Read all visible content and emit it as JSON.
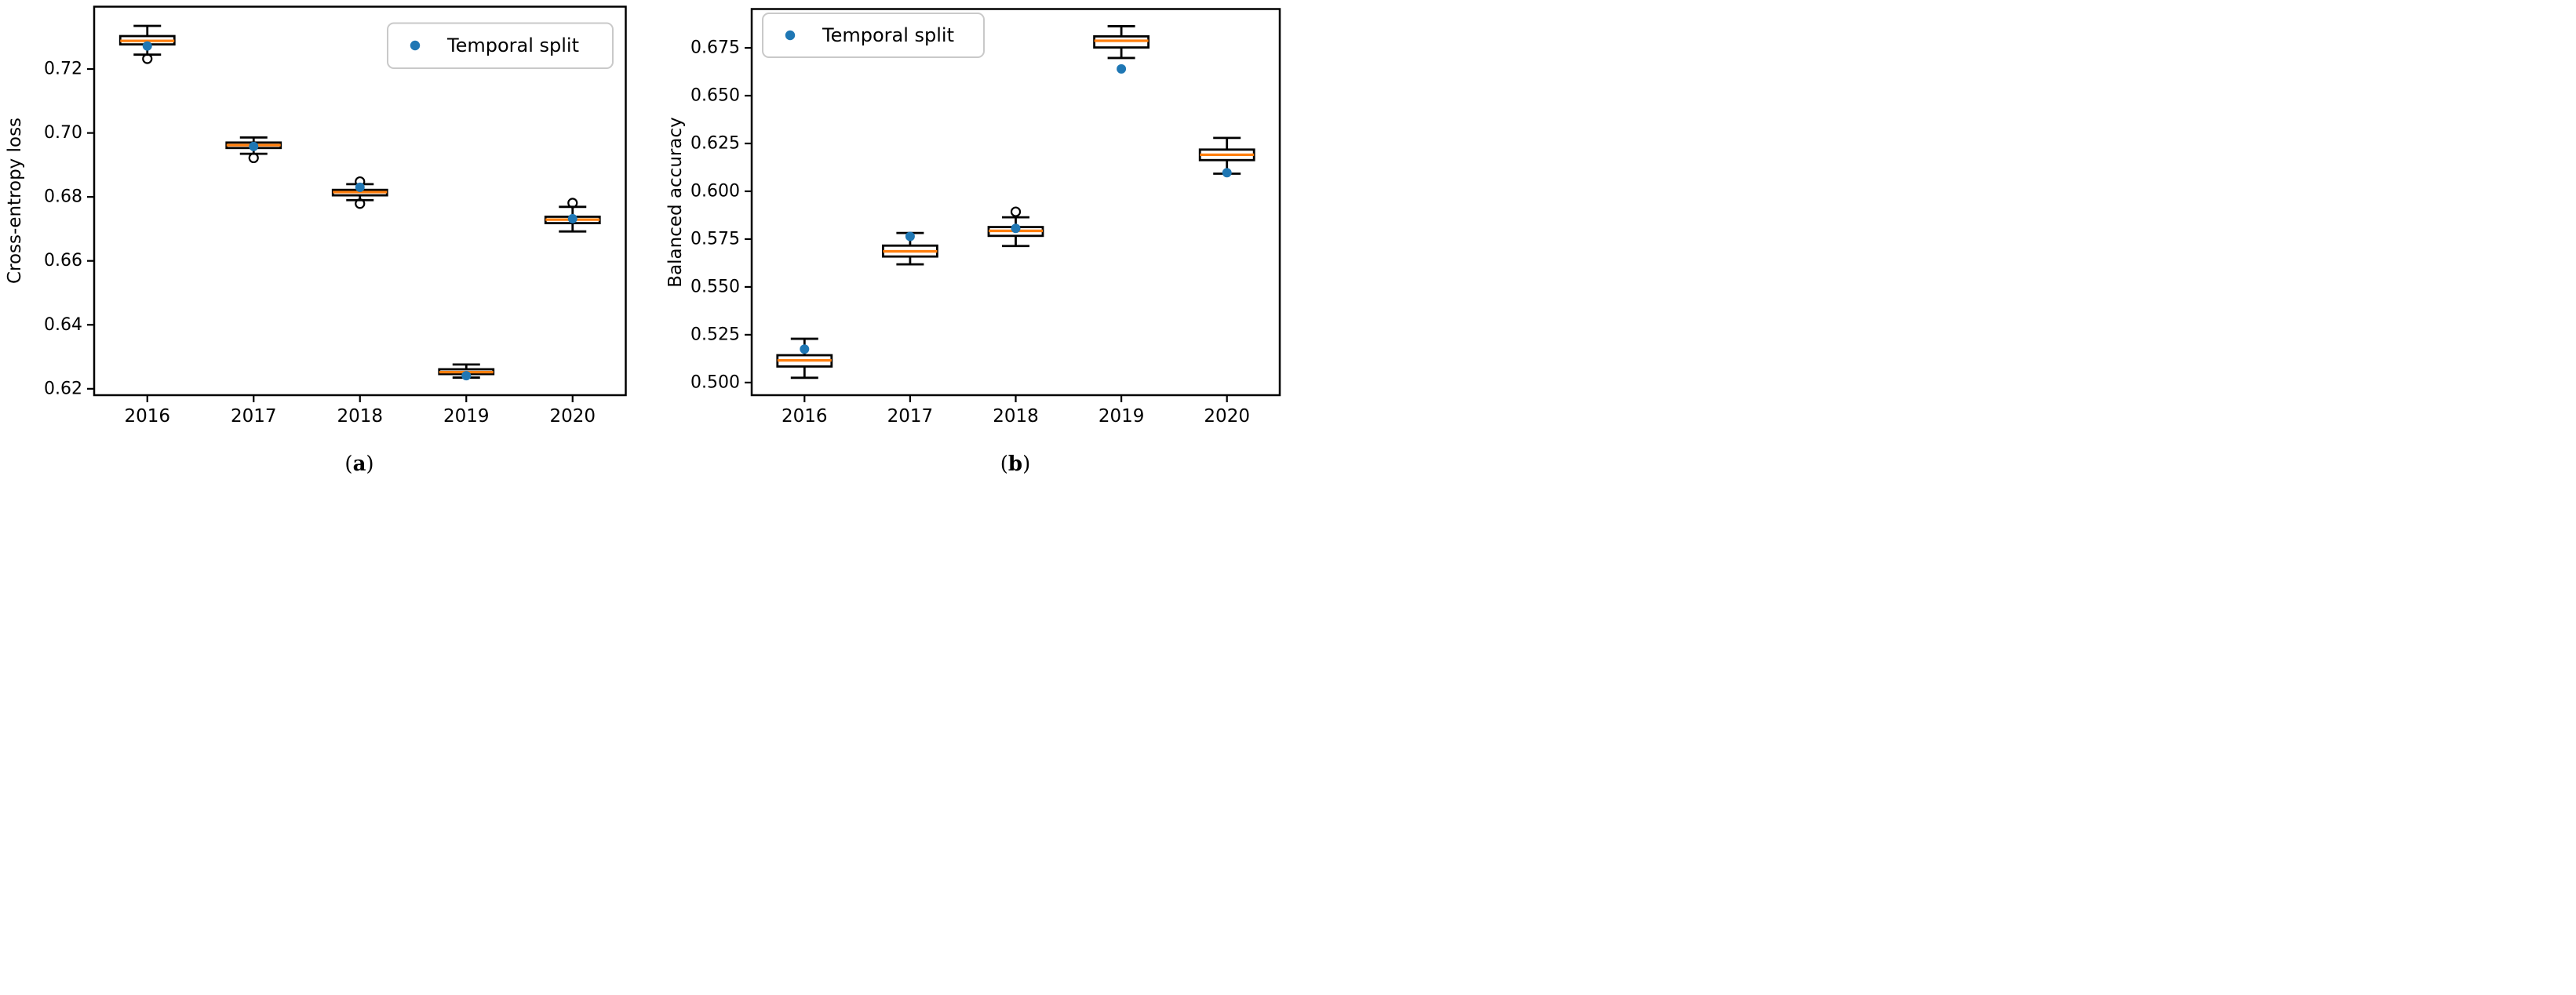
{
  "legend": {
    "label": "Temporal split"
  },
  "colors": {
    "box_line": "#000000",
    "median_line": "#ff7f0e",
    "temporal_split_marker": "#1f77b4",
    "legend_border": "#c9c9c9",
    "background": "#ffffff"
  },
  "captions": {
    "a_open": "(",
    "a_letter": "a",
    "a_close": ")",
    "b_open": "(",
    "b_letter": "b",
    "b_close": ")"
  },
  "chart_data": [
    {
      "type": "box",
      "panel": "a",
      "ylabel": "Cross-entropy loss",
      "legend_label": "Temporal split",
      "legend_position": "upper right",
      "grid": false,
      "categories": [
        "2016",
        "2017",
        "2018",
        "2019",
        "2020"
      ],
      "yticks": [
        0.62,
        0.64,
        0.66,
        0.68,
        0.7,
        0.72
      ],
      "ytick_labels": [
        "0.62",
        "0.64",
        "0.66",
        "0.68",
        "0.70",
        "0.72"
      ],
      "ylim": [
        0.618,
        0.7395
      ],
      "series": [
        {
          "name": "2016",
          "whislo": 0.7245,
          "q1": 0.7277,
          "med": 0.7288,
          "q3": 0.7303,
          "whishi": 0.7335,
          "outliers": [
            0.7232
          ],
          "temporal_split_point": 0.7272
        },
        {
          "name": "2017",
          "whislo": 0.6935,
          "q1": 0.6953,
          "med": 0.6962,
          "q3": 0.697,
          "whishi": 0.6986,
          "outliers": [
            0.6922
          ],
          "temporal_split_point": 0.6958
        },
        {
          "name": "2018",
          "whislo": 0.679,
          "q1": 0.6805,
          "med": 0.6815,
          "q3": 0.6822,
          "whishi": 0.684,
          "outliers": [
            0.6848,
            0.6779
          ],
          "temporal_split_point": 0.683
        },
        {
          "name": "2019",
          "whislo": 0.6235,
          "q1": 0.6246,
          "med": 0.6252,
          "q3": 0.6261,
          "whishi": 0.6276,
          "outliers": [],
          "temporal_split_point": 0.6241
        },
        {
          "name": "2020",
          "whislo": 0.6692,
          "q1": 0.6718,
          "med": 0.6729,
          "q3": 0.6738,
          "whishi": 0.6769,
          "outliers": [
            0.6781
          ],
          "temporal_split_point": 0.6732
        }
      ]
    },
    {
      "type": "box",
      "panel": "b",
      "ylabel": "Balanced accuracy",
      "legend_label": "Temporal split",
      "legend_position": "upper left",
      "grid": false,
      "categories": [
        "2016",
        "2017",
        "2018",
        "2019",
        "2020"
      ],
      "yticks": [
        0.5,
        0.525,
        0.55,
        0.575,
        0.6,
        0.625,
        0.65,
        0.675
      ],
      "ytick_labels": [
        "0.500",
        "0.525",
        "0.550",
        "0.575",
        "0.600",
        "0.625",
        "0.650",
        "0.675"
      ],
      "ylim": [
        0.4934,
        0.6953
      ],
      "series": [
        {
          "name": "2016",
          "whislo": 0.5025,
          "q1": 0.5084,
          "med": 0.5116,
          "q3": 0.5143,
          "whishi": 0.5229,
          "outliers": [],
          "temporal_split_point": 0.5175
        },
        {
          "name": "2017",
          "whislo": 0.5618,
          "q1": 0.5659,
          "med": 0.5686,
          "q3": 0.5716,
          "whishi": 0.5782,
          "outliers": [],
          "temporal_split_point": 0.5764
        },
        {
          "name": "2018",
          "whislo": 0.5714,
          "q1": 0.5767,
          "med": 0.5793,
          "q3": 0.5813,
          "whishi": 0.5864,
          "outliers": [
            0.5893
          ],
          "temporal_split_point": 0.5806
        },
        {
          "name": "2019",
          "whislo": 0.6697,
          "q1": 0.6752,
          "med": 0.6787,
          "q3": 0.681,
          "whishi": 0.6863,
          "outliers": [],
          "temporal_split_point": 0.664
        },
        {
          "name": "2020",
          "whislo": 0.6092,
          "q1": 0.6163,
          "med": 0.6191,
          "q3": 0.6218,
          "whishi": 0.6279,
          "outliers": [],
          "temporal_split_point": 0.6097
        }
      ]
    }
  ]
}
